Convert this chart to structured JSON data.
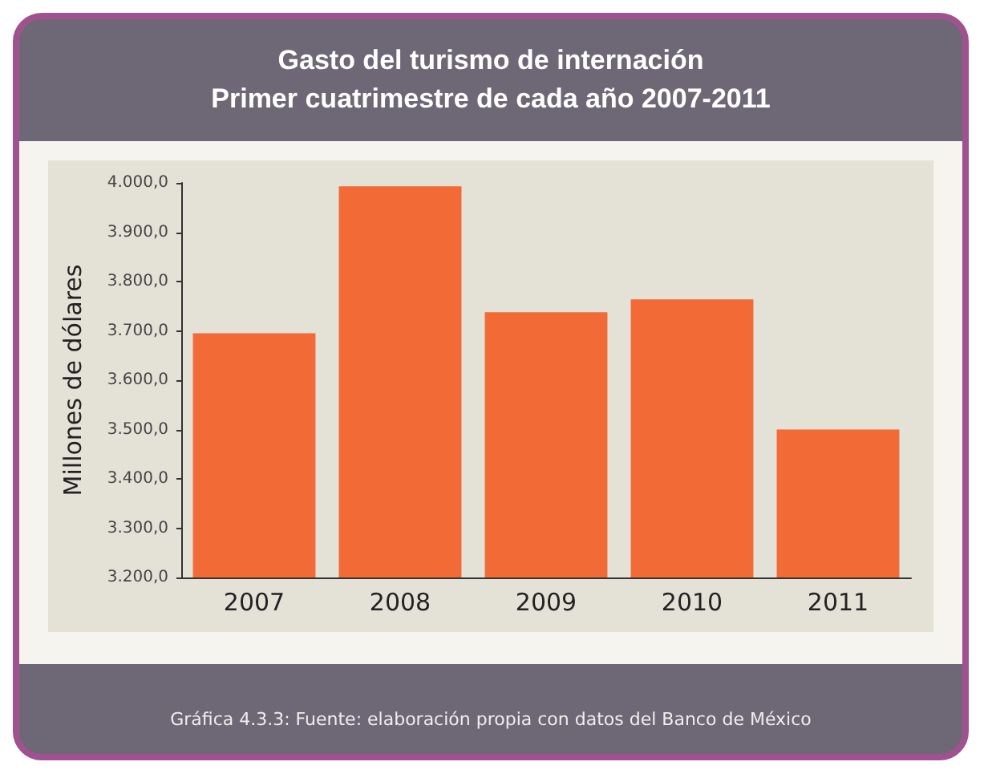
{
  "chart_data": {
    "type": "bar",
    "title": "Gasto del turismo de internación\nPrimer cuatrimestre de cada año 2007-2011",
    "ylabel": "Millones de dólares",
    "categories": [
      "2007",
      "2008",
      "2009",
      "2010",
      "2011"
    ],
    "values": [
      3695,
      3993,
      3738,
      3764,
      3500
    ],
    "color": "#f26a36",
    "ylim": [
      3200,
      4000
    ],
    "yticks": [
      {
        "value": 3200,
        "label": "3.200,0"
      },
      {
        "value": 3300,
        "label": "3.300,0"
      },
      {
        "value": 3400,
        "label": "3.400,0"
      },
      {
        "value": 3500,
        "label": "3.500,0"
      },
      {
        "value": 3600,
        "label": "3.600,0"
      },
      {
        "value": 3700,
        "label": "3.700,0"
      },
      {
        "value": 3800,
        "label": "3.800,0"
      },
      {
        "value": 3900,
        "label": "3.900,0"
      },
      {
        "value": 4000,
        "label": "4.000,0"
      }
    ],
    "grid": false,
    "annotations": [
      "Gráfica 4.3.3: Fuente: elaboración propia con datos del Banco de México"
    ]
  }
}
